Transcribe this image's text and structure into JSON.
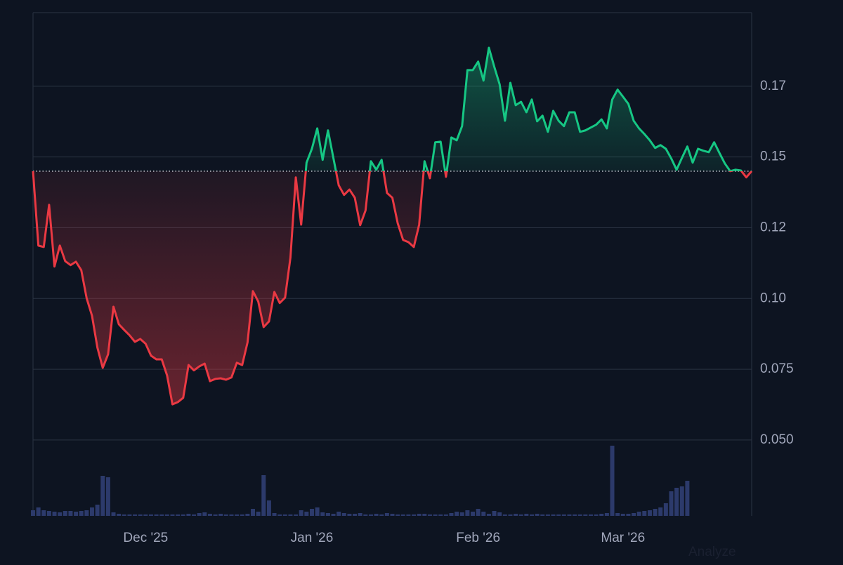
{
  "chart_data": {
    "type": "line",
    "categories": [
      null,
      null,
      null,
      null,
      null,
      null,
      null,
      null,
      null,
      null,
      null,
      null,
      null,
      null,
      null,
      null,
      null,
      null,
      null,
      null,
      null,
      "Dec '25",
      null,
      null,
      null,
      null,
      null,
      null,
      null,
      null,
      null,
      null,
      null,
      null,
      null,
      null,
      null,
      null,
      null,
      null,
      null,
      null,
      null,
      null,
      null,
      null,
      null,
      null,
      null,
      null,
      null,
      null,
      "Jan '26",
      null,
      null,
      null,
      null,
      null,
      null,
      null,
      null,
      null,
      null,
      null,
      null,
      null,
      null,
      null,
      null,
      null,
      null,
      null,
      null,
      null,
      null,
      null,
      null,
      null,
      null,
      null,
      null,
      null,
      null,
      "Feb '26",
      null,
      null,
      null,
      null,
      null,
      null,
      null,
      null,
      null,
      null,
      null,
      null,
      null,
      null,
      null,
      null,
      null,
      null,
      null,
      null,
      null,
      null,
      null,
      null,
      null,
      null,
      "Mar '26",
      null,
      null,
      null,
      null,
      null,
      null,
      null,
      null,
      null,
      null,
      null,
      null,
      null,
      null,
      null,
      null,
      null,
      null,
      null,
      null,
      null,
      null,
      null,
      null
    ],
    "values": [
      0.145,
      0.1187,
      0.1182,
      0.1331,
      0.1113,
      0.1187,
      0.1132,
      0.1118,
      0.113,
      0.11,
      0.1001,
      0.0939,
      0.0827,
      0.0755,
      0.0803,
      0.0971,
      0.0909,
      0.0889,
      0.087,
      0.0847,
      0.0857,
      0.084,
      0.0798,
      0.0785,
      0.0785,
      0.0728,
      0.0626,
      0.0634,
      0.0649,
      0.0765,
      0.0746,
      0.076,
      0.077,
      0.0708,
      0.0716,
      0.0718,
      0.0713,
      0.0721,
      0.0773,
      0.0765,
      0.0845,
      0.1026,
      0.0989,
      0.0899,
      0.0919,
      0.1023,
      0.0984,
      0.1003,
      0.1145,
      0.1428,
      0.1261,
      0.148,
      0.1529,
      0.1601,
      0.149,
      0.1594,
      0.1497,
      0.14,
      0.1366,
      0.1385,
      0.1356,
      0.1259,
      0.1311,
      0.1485,
      0.1455,
      0.149,
      0.1373,
      0.1356,
      0.1266,
      0.1207,
      0.1199,
      0.1182,
      0.1261,
      0.1485,
      0.1425,
      0.1552,
      0.1554,
      0.143,
      0.1569,
      0.1559,
      0.1609,
      0.1807,
      0.1807,
      0.1837,
      0.177,
      0.1886,
      0.1819,
      0.1757,
      0.1628,
      0.1762,
      0.1683,
      0.1695,
      0.1658,
      0.1703,
      0.1626,
      0.1646,
      0.1589,
      0.1663,
      0.1628,
      0.1609,
      0.1658,
      0.1658,
      0.1589,
      0.1594,
      0.1604,
      0.1614,
      0.1633,
      0.1601,
      0.1703,
      0.1738,
      0.1713,
      0.1688,
      0.1628,
      0.1601,
      0.1581,
      0.1559,
      0.1532,
      0.1542,
      0.1529,
      0.1495,
      0.1455,
      0.1497,
      0.1537,
      0.148,
      0.1529,
      0.1522,
      0.1517,
      0.1552,
      0.1514,
      0.1477,
      0.145,
      0.1455,
      0.1452,
      0.1428,
      0.145
    ],
    "baseline": 0.145,
    "color_up": "#16c784",
    "color_down": "#ea3943",
    "volume": [
      8,
      12,
      8,
      7,
      6,
      5,
      7,
      7,
      6,
      7,
      8,
      12,
      16,
      57,
      55,
      5,
      3,
      2,
      2,
      2,
      2,
      2,
      2,
      2,
      2,
      2,
      2,
      2,
      2,
      3,
      2,
      4,
      5,
      3,
      2,
      3,
      2,
      2,
      2,
      2,
      3,
      10,
      6,
      58,
      22,
      4,
      2,
      2,
      2,
      2,
      8,
      6,
      10,
      12,
      5,
      4,
      3,
      6,
      4,
      3,
      3,
      4,
      2,
      2,
      3,
      2,
      4,
      3,
      2,
      2,
      2,
      2,
      3,
      3,
      2,
      2,
      2,
      2,
      4,
      6,
      5,
      8,
      6,
      10,
      6,
      3,
      7,
      5,
      2,
      2,
      3,
      2,
      3,
      2,
      3,
      2,
      2,
      2,
      2,
      2,
      2,
      2,
      2,
      2,
      2,
      2,
      3,
      4,
      100,
      4,
      3,
      3,
      4,
      6,
      7,
      8,
      10,
      12,
      18,
      35,
      40,
      42,
      50,
      0,
      0,
      0,
      0,
      0,
      0,
      0,
      0,
      0,
      0,
      0,
      0
    ],
    "volume_color": "#2c3a6b",
    "ylim": [
      0.0232,
      0.201
    ],
    "yticks": [
      {
        "value": 0.05,
        "label": "0.050"
      },
      0.075,
      {
        "value": 0.1,
        "label": "0.10"
      },
      {
        "value": 0.125,
        "label": "0.12"
      },
      {
        "value": 0.15,
        "label": "0.15"
      },
      {
        "value": 0.175,
        "label": "0.17"
      }
    ],
    "grid": true,
    "annotation": "Analyze"
  }
}
